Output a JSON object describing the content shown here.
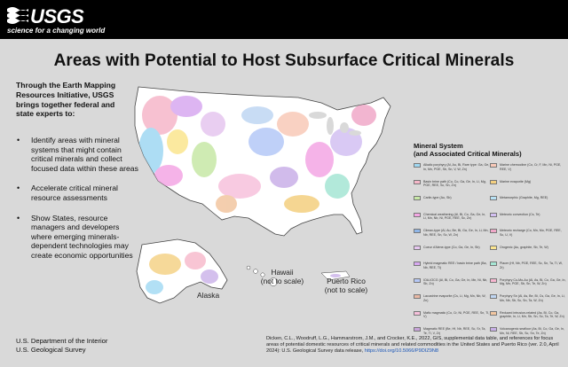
{
  "header": {
    "logo_text": "USGS",
    "logo_tagline": "science for a changing world"
  },
  "title": "Areas with Potential to Host Subsurface Critical Minerals",
  "intro": "Through the Earth Mapping Resources Initiative, USGS brings together federal and state experts to:",
  "bullets": [
    "Identify areas with mineral systems that might contain critical minerals and collect focused data within these areas",
    "Accelerate critical mineral resource assessments",
    "Show States, resource managers and developers where emerging minerals-dependent technologies may create economic opportunities"
  ],
  "organization": [
    "U.S. Department of the Interior",
    "U.S. Geological Survey"
  ],
  "map_labels": {
    "alaska": "Alaska",
    "hawaii": "Hawaii",
    "hawaii_note": "(not to scale)",
    "puerto_rico": "Puerto Rico",
    "puerto_rico_note": "(not to scale)"
  },
  "legend": {
    "title": "Mineral System",
    "subtitle": "(and Associated Critical Minerals)",
    "items": [
      {
        "label": "Alkalic porphyry (Al, Au, Bi, Rare type: Ga, Ge, In, Mn, PGE, Sb, Sn, V, W, Zn)",
        "color": "#9fd8f2"
      },
      {
        "label": "Basin brine path (Cu, Co, Ga, Ge, In, Li, Mg, PGE, REE, Sc, Sn, Zn)",
        "color": "#f6b7c9"
      },
      {
        "label": "Carlin-type (Au, Sb)",
        "color": "#c7e8a6"
      },
      {
        "label": "Chemical weathering (Al, Bi, Co, Ga, Ge, In, Li, Mn, Nb, Ni, PGE, REE, Sc, Zn)",
        "color": "#f4a6e4"
      },
      {
        "label": "Climax-type (Al, Au, Be, Bi, Ga, Ge, In, Li, Mn, Nb, REE, Sn, Sc, W, Zn)",
        "color": "#8fb6e8"
      },
      {
        "label": "Coeur d'Alene-type (Co, Ga, Ge, In, Sb)",
        "color": "#e5c6ef"
      },
      {
        "label": "Hybrid magmatic REE / basin brine path (Ba, Nb, REE, Ti)",
        "color": "#d7a8f0"
      },
      {
        "label": "IOA-IOCG (Al, Bi, Co, Ga, Ge, In, Mn, Ni, Nb, Sb, Zn)",
        "color": "#b5c8f7"
      },
      {
        "label": "Lacustrine evaporite (Cs, Li, Mg, Mn, Nb, W, Zn)",
        "color": "#e9b8a4"
      },
      {
        "label": "Mafic magmatic (Co, Cr, Ni, PGE, REE, Sn, Ti, V)",
        "color": "#f7c1dc"
      },
      {
        "label": "Magmatic REE (Be, Hf, Nb, REE, Sc, Sr, Ta, Te, Ti, V, Zr)",
        "color": "#c8a3d9"
      },
      {
        "label": "Marine chemocline (Co, Cr, F, Mn, Ni, PGE, REE, V)",
        "color": "#f9c9b8"
      },
      {
        "label": "Marine evaporite (Mg)",
        "color": "#f4d080"
      },
      {
        "label": "Metamorphic (Graphite, Mg, REE)",
        "color": "#b8e2f5"
      },
      {
        "label": "Meteoric convection (Cs, Te)",
        "color": "#d3c0f2"
      },
      {
        "label": "Meteoric recharge (Co, Mn, Mo, PGE, REE, Sc, U, V)",
        "color": "#f0a8c8"
      },
      {
        "label": "Orogenic (Au, graphite, Sb, Te, W)",
        "color": "#fbe58f"
      },
      {
        "label": "Placer (Hf, Nb, PGE, REE, Sc, Sn, Ta, Ti, W, Zr)",
        "color": "#a5e6d4"
      },
      {
        "label": "Porphyry Cu-Mo-Au (Al, As, Bi, Co, Ga, Ge, In, Mg, Mn, PGE, Sb, Sn, Te, W, Zn)",
        "color": "#f7b6d0"
      },
      {
        "label": "Porphyry Sn (Al, As, Be, Bi, Cs, Ga, Ge, In, Li, Mn, Nb, Sb, Sc, Sn, Ta, W, Zn)",
        "color": "#bfd6f3"
      },
      {
        "label": "Reduced intrusion-related (As, Bi, Co, Ga, graphite, In, Li, Mn, Sb, Sn, Sc, Ta, Te, W, Zn)",
        "color": "#f2c6a0"
      },
      {
        "label": "Volcanogenic seafloor (As, Bi, Co, Ga, Ge, In, Mn, Ni, REE, Sb, Sc, Sn, Te, Zn)",
        "color": "#c9b0e8"
      }
    ]
  },
  "citation": {
    "text": "Dicken, C.L., Woodruff, L.G., Hammarstrom, J.M., and Crocker, K.E., 2022, GIS, supplemental data table, and references for focus areas of potential domestic resources of critical minerals and related commodities in the United States and Puerto Rico (ver. 2.0, April 2024): U.S. Geological Survey data release, ",
    "link": "https://doi.org/10.5066/P9DIZ9N8"
  }
}
